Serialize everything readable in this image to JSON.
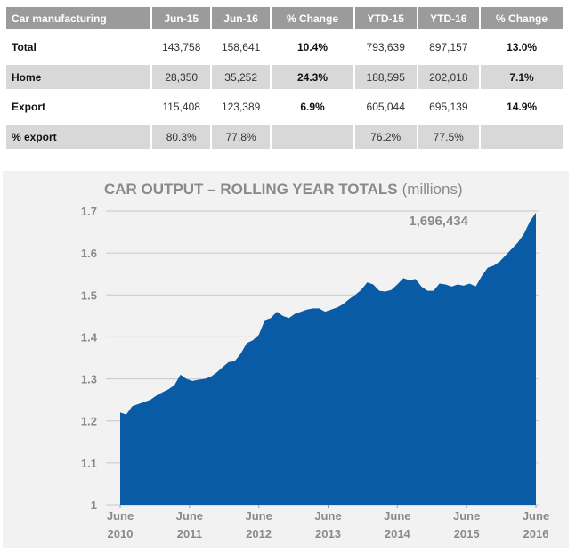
{
  "table": {
    "headers": [
      "Car manufacturing",
      "Jun-15",
      "Jun-16",
      "% Change",
      "YTD-15",
      "YTD-16",
      "% Change"
    ],
    "rows": [
      {
        "label": "Total",
        "cells": [
          "143,758",
          "158,641",
          "10.4%",
          "793,639",
          "897,157",
          "13.0%"
        ]
      },
      {
        "label": "Home",
        "cells": [
          "28,350",
          "35,252",
          "24.3%",
          "188,595",
          "202,018",
          "7.1%"
        ]
      },
      {
        "label": "Export",
        "cells": [
          "115,408",
          "123,389",
          "6.9%",
          "605,044",
          "695,139",
          "14.9%"
        ]
      },
      {
        "label": "% export",
        "cells": [
          "80.3%",
          "77.8%",
          "",
          "76.2%",
          "77.5%",
          ""
        ]
      }
    ]
  },
  "chart_data": {
    "type": "area",
    "title": "CAR OUTPUT – ROLLING YEAR TOTALS",
    "title_suffix": "(millions)",
    "xlabel": "",
    "ylabel": "",
    "ylim": [
      1,
      1.7
    ],
    "yticks": [
      "1.7",
      "1.6",
      "1.5",
      "1.4",
      "1.3",
      "1.2",
      "1.1",
      "1"
    ],
    "xticks": [
      {
        "line1": "June",
        "line2": "2010"
      },
      {
        "line1": "June",
        "line2": "2011"
      },
      {
        "line1": "June",
        "line2": "2012"
      },
      {
        "line1": "June",
        "line2": "2013"
      },
      {
        "line1": "June",
        "line2": "2014"
      },
      {
        "line1": "June",
        "line2": "2015"
      },
      {
        "line1": "June",
        "line2": "2016"
      }
    ],
    "annotation": "1,696,434",
    "color": "#0a5ba6",
    "values": [
      1.22,
      1.215,
      1.235,
      1.24,
      1.245,
      1.25,
      1.26,
      1.268,
      1.275,
      1.285,
      1.31,
      1.3,
      1.295,
      1.298,
      1.3,
      1.305,
      1.315,
      1.328,
      1.34,
      1.342,
      1.36,
      1.385,
      1.392,
      1.405,
      1.44,
      1.445,
      1.46,
      1.45,
      1.445,
      1.455,
      1.46,
      1.465,
      1.468,
      1.468,
      1.46,
      1.465,
      1.47,
      1.478,
      1.49,
      1.5,
      1.512,
      1.53,
      1.525,
      1.51,
      1.508,
      1.512,
      1.525,
      1.54,
      1.535,
      1.538,
      1.52,
      1.51,
      1.51,
      1.527,
      1.525,
      1.52,
      1.525,
      1.522,
      1.527,
      1.52,
      1.545,
      1.565,
      1.57,
      1.58,
      1.595,
      1.61,
      1.625,
      1.645,
      1.675,
      1.696
    ]
  }
}
